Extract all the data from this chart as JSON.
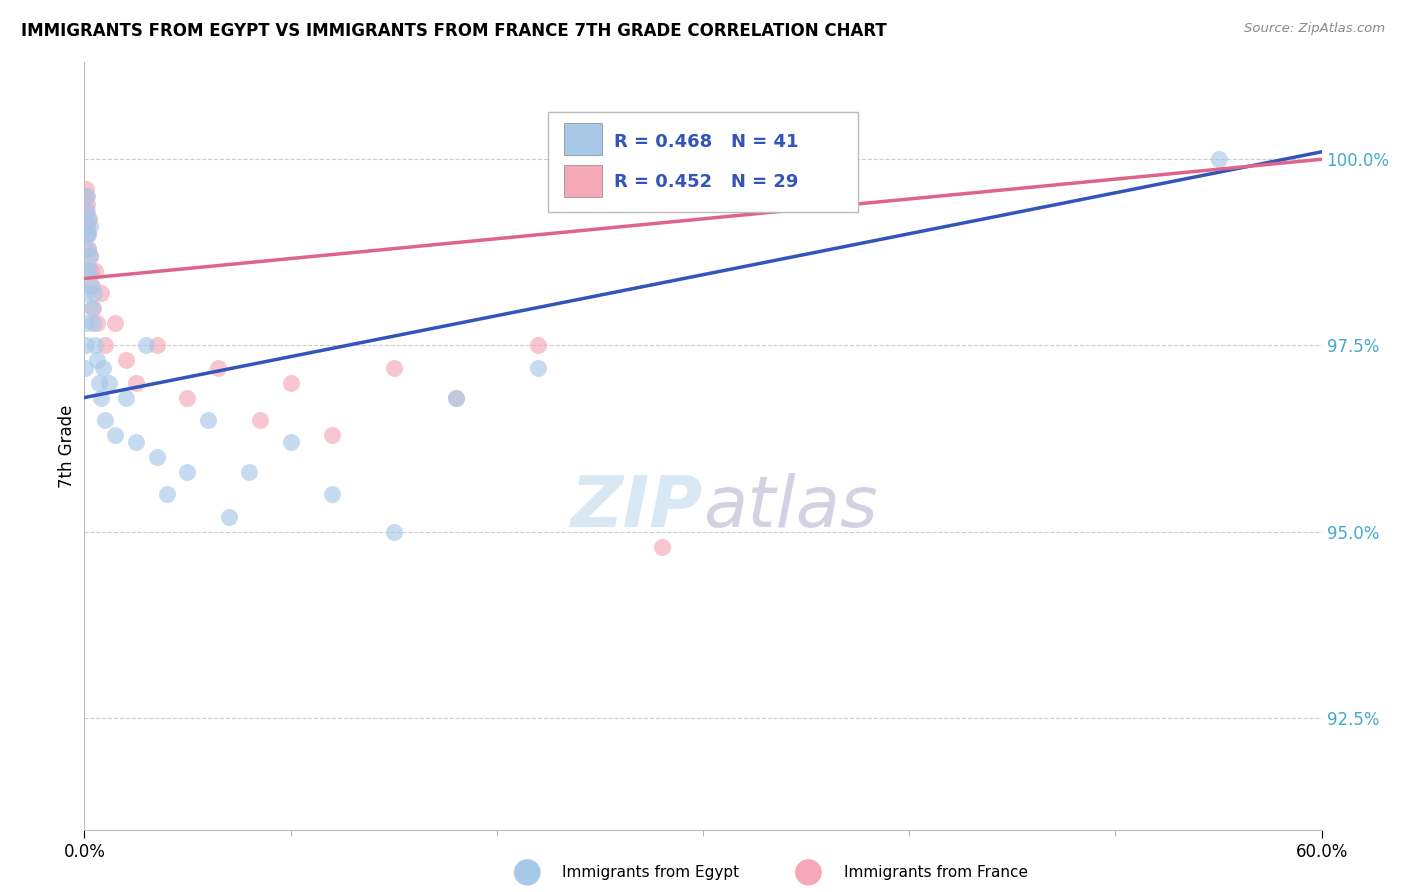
{
  "title": "IMMIGRANTS FROM EGYPT VS IMMIGRANTS FROM FRANCE 7TH GRADE CORRELATION CHART",
  "source": "Source: ZipAtlas.com",
  "ylabel": "7th Grade",
  "yaxis_values": [
    92.5,
    95.0,
    97.5,
    100.0
  ],
  "xlim": [
    0.0,
    60.0
  ],
  "ylim": [
    91.0,
    101.3
  ],
  "legend_blue_label": "Immigrants from Egypt",
  "legend_pink_label": "Immigrants from France",
  "R_blue": 0.468,
  "N_blue": 41,
  "R_pink": 0.452,
  "N_pink": 29,
  "blue_color": "#a8c8e8",
  "pink_color": "#f4a8b8",
  "blue_line_color": "#3355bb",
  "pink_line_color": "#dd6688",
  "tick_color": "#44aacc",
  "egypt_x": [
    0.05,
    0.07,
    0.09,
    0.1,
    0.12,
    0.13,
    0.14,
    0.15,
    0.17,
    0.18,
    0.2,
    0.22,
    0.25,
    0.28,
    0.3,
    0.35,
    0.4,
    0.45,
    0.5,
    0.6,
    0.7,
    0.8,
    0.9,
    1.0,
    1.2,
    1.5,
    2.0,
    2.5,
    3.0,
    3.5,
    4.0,
    5.0,
    6.0,
    7.0,
    8.0,
    10.0,
    12.0,
    15.0,
    18.0,
    22.0,
    55.0
  ],
  "egypt_y": [
    97.2,
    97.5,
    97.8,
    98.2,
    98.5,
    99.0,
    99.3,
    99.5,
    99.2,
    99.0,
    98.8,
    98.5,
    99.1,
    98.7,
    98.3,
    98.0,
    97.8,
    98.2,
    97.5,
    97.3,
    97.0,
    96.8,
    97.2,
    96.5,
    97.0,
    96.3,
    96.8,
    96.2,
    97.5,
    96.0,
    95.5,
    95.8,
    96.5,
    95.2,
    95.8,
    96.2,
    95.5,
    95.0,
    96.8,
    97.2,
    100.0
  ],
  "france_x": [
    0.06,
    0.08,
    0.1,
    0.12,
    0.15,
    0.17,
    0.2,
    0.22,
    0.25,
    0.3,
    0.35,
    0.4,
    0.5,
    0.6,
    0.8,
    1.0,
    1.5,
    2.0,
    2.5,
    3.5,
    5.0,
    6.5,
    8.5,
    10.0,
    12.0,
    15.0,
    18.0,
    22.0,
    28.0
  ],
  "france_y": [
    99.5,
    99.3,
    99.6,
    99.4,
    99.1,
    99.0,
    98.8,
    99.2,
    98.7,
    98.5,
    98.3,
    98.0,
    98.5,
    97.8,
    98.2,
    97.5,
    97.8,
    97.3,
    97.0,
    97.5,
    96.8,
    97.2,
    96.5,
    97.0,
    96.3,
    97.2,
    96.8,
    97.5,
    94.8
  ],
  "blue_line_x0": 0.0,
  "blue_line_y0": 96.8,
  "blue_line_x1": 60.0,
  "blue_line_y1": 100.1,
  "pink_line_x0": 0.0,
  "pink_line_y0": 98.4,
  "pink_line_x1": 60.0,
  "pink_line_y1": 100.0
}
